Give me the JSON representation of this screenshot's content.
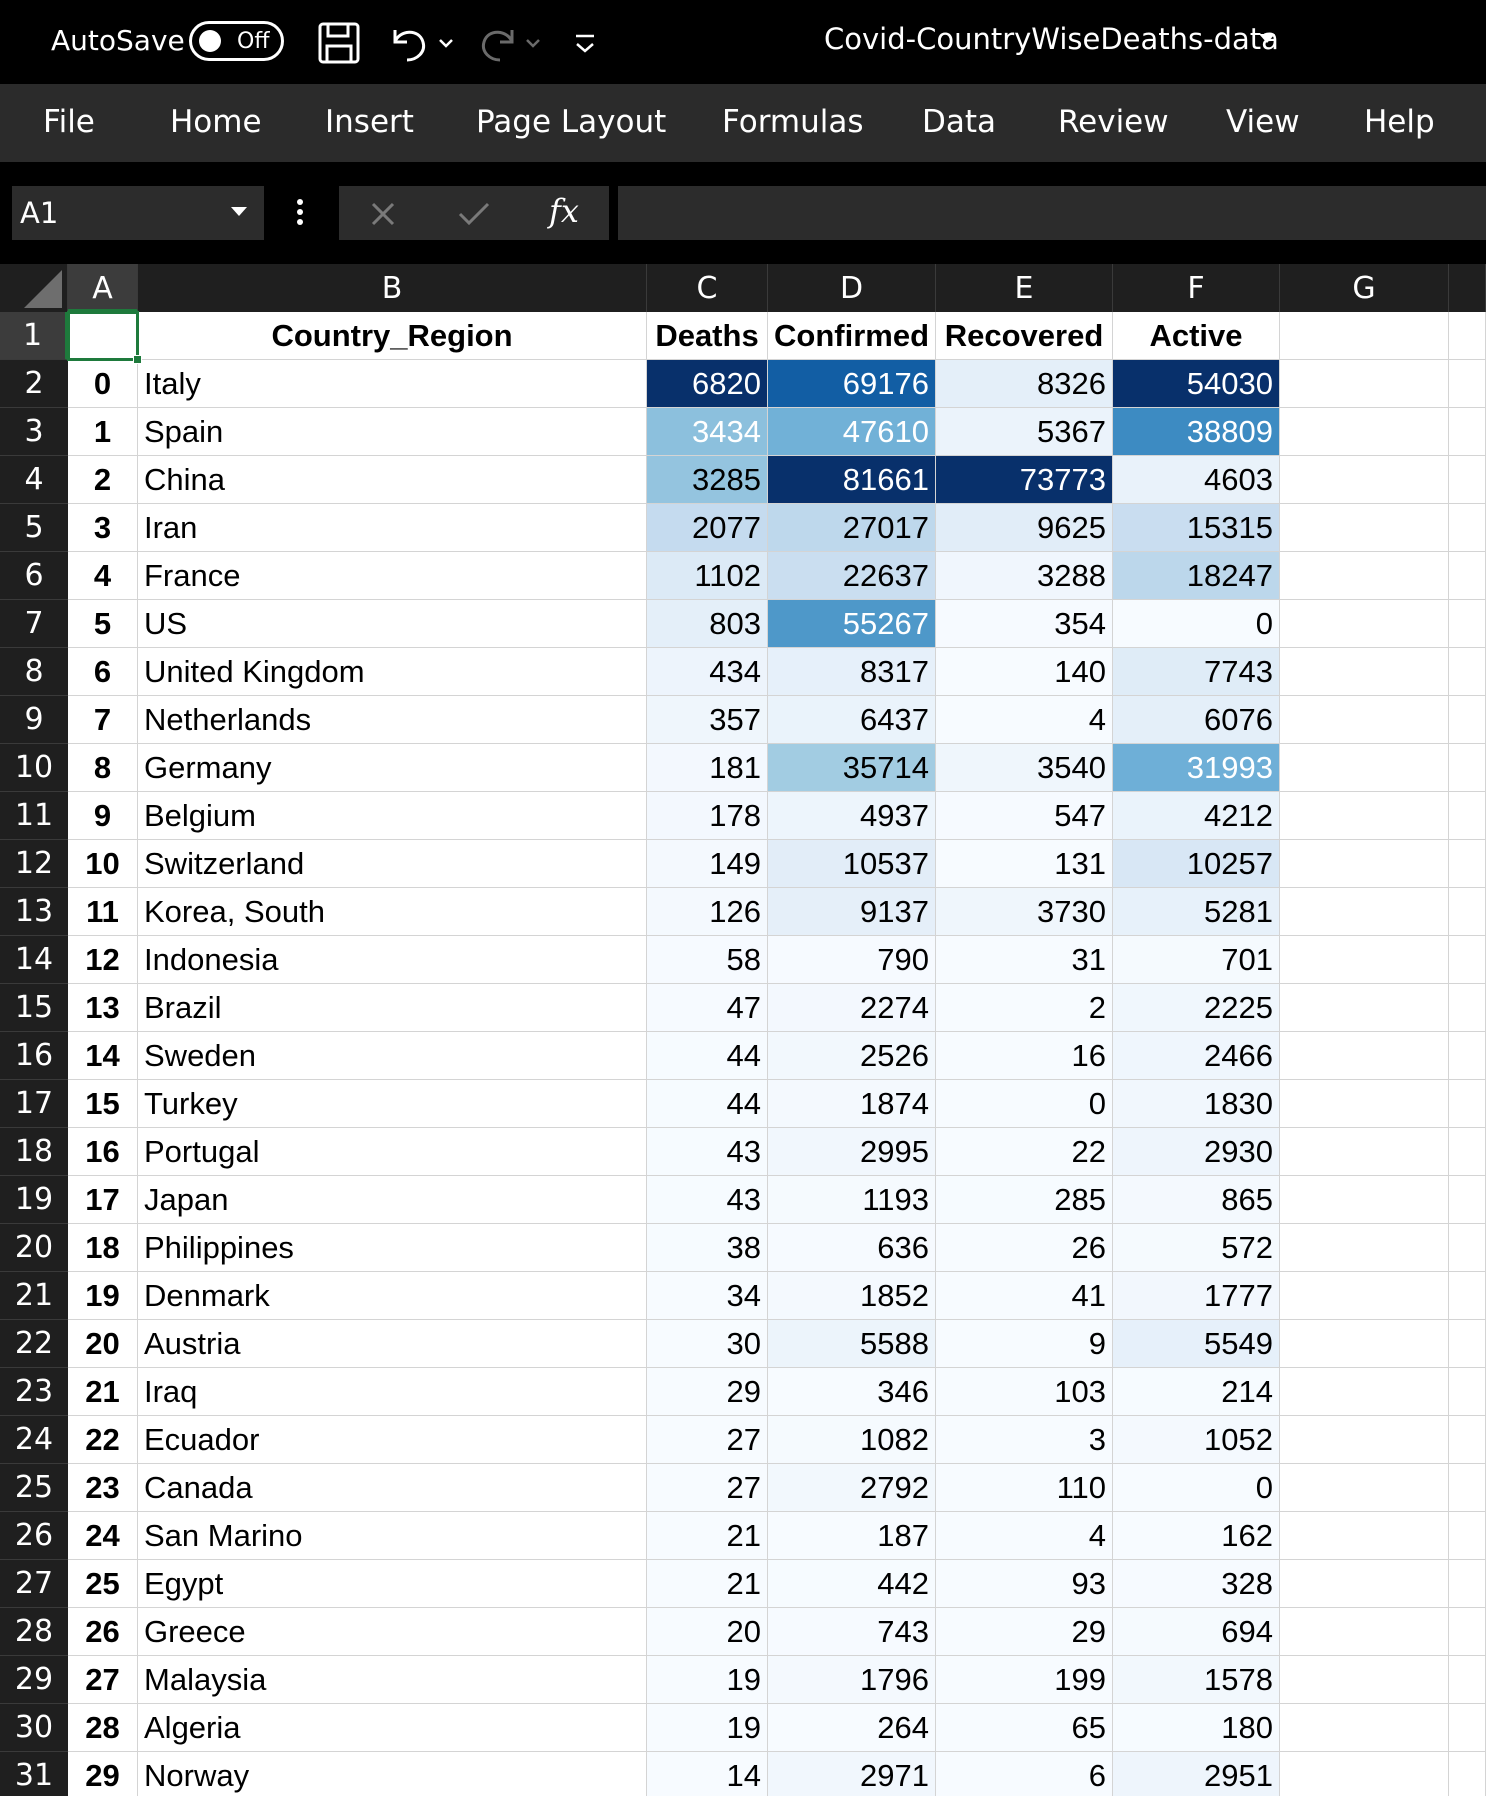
{
  "titlebar": {
    "autosave_label": "AutoSave",
    "autosave_state": "Off",
    "document_title": "Covid-CountryWiseDeaths-data",
    "icons": [
      "save-icon",
      "undo-icon",
      "redo-icon",
      "customize-quick-access-icon"
    ]
  },
  "menu": {
    "items": [
      "File",
      "Home",
      "Insert",
      "Page Layout",
      "Formulas",
      "Data",
      "Review",
      "View",
      "Help"
    ]
  },
  "formula_bar": {
    "name_box": "A1",
    "formula": "",
    "fx_label": "fx"
  },
  "grid": {
    "column_letters": [
      "A",
      "B",
      "C",
      "D",
      "E",
      "F",
      "G"
    ],
    "selected_column": "A",
    "selected_row": 1,
    "header_row": [
      "",
      "Country_Region",
      "Deaths",
      "Confirmed",
      "Recovered",
      "Active"
    ],
    "rows": [
      {
        "row": 2,
        "idx": "0",
        "country": "Italy",
        "deaths": 6820,
        "confirmed": 69176,
        "recovered": 8326,
        "active": 54030
      },
      {
        "row": 3,
        "idx": "1",
        "country": "Spain",
        "deaths": 3434,
        "confirmed": 47610,
        "recovered": 5367,
        "active": 38809
      },
      {
        "row": 4,
        "idx": "2",
        "country": "China",
        "deaths": 3285,
        "confirmed": 81661,
        "recovered": 73773,
        "active": 4603
      },
      {
        "row": 5,
        "idx": "3",
        "country": "Iran",
        "deaths": 2077,
        "confirmed": 27017,
        "recovered": 9625,
        "active": 15315
      },
      {
        "row": 6,
        "idx": "4",
        "country": "France",
        "deaths": 1102,
        "confirmed": 22637,
        "recovered": 3288,
        "active": 18247
      },
      {
        "row": 7,
        "idx": "5",
        "country": "US",
        "deaths": 803,
        "confirmed": 55267,
        "recovered": 354,
        "active": 0
      },
      {
        "row": 8,
        "idx": "6",
        "country": "United Kingdom",
        "deaths": 434,
        "confirmed": 8317,
        "recovered": 140,
        "active": 7743
      },
      {
        "row": 9,
        "idx": "7",
        "country": "Netherlands",
        "deaths": 357,
        "confirmed": 6437,
        "recovered": 4,
        "active": 6076
      },
      {
        "row": 10,
        "idx": "8",
        "country": "Germany",
        "deaths": 181,
        "confirmed": 35714,
        "recovered": 3540,
        "active": 31993
      },
      {
        "row": 11,
        "idx": "9",
        "country": "Belgium",
        "deaths": 178,
        "confirmed": 4937,
        "recovered": 547,
        "active": 4212
      },
      {
        "row": 12,
        "idx": "10",
        "country": "Switzerland",
        "deaths": 149,
        "confirmed": 10537,
        "recovered": 131,
        "active": 10257
      },
      {
        "row": 13,
        "idx": "11",
        "country": "Korea, South",
        "deaths": 126,
        "confirmed": 9137,
        "recovered": 3730,
        "active": 5281
      },
      {
        "row": 14,
        "idx": "12",
        "country": "Indonesia",
        "deaths": 58,
        "confirmed": 790,
        "recovered": 31,
        "active": 701
      },
      {
        "row": 15,
        "idx": "13",
        "country": "Brazil",
        "deaths": 47,
        "confirmed": 2274,
        "recovered": 2,
        "active": 2225
      },
      {
        "row": 16,
        "idx": "14",
        "country": "Sweden",
        "deaths": 44,
        "confirmed": 2526,
        "recovered": 16,
        "active": 2466
      },
      {
        "row": 17,
        "idx": "15",
        "country": "Turkey",
        "deaths": 44,
        "confirmed": 1874,
        "recovered": 0,
        "active": 1830
      },
      {
        "row": 18,
        "idx": "16",
        "country": "Portugal",
        "deaths": 43,
        "confirmed": 2995,
        "recovered": 22,
        "active": 2930
      },
      {
        "row": 19,
        "idx": "17",
        "country": "Japan",
        "deaths": 43,
        "confirmed": 1193,
        "recovered": 285,
        "active": 865
      },
      {
        "row": 20,
        "idx": "18",
        "country": "Philippines",
        "deaths": 38,
        "confirmed": 636,
        "recovered": 26,
        "active": 572
      },
      {
        "row": 21,
        "idx": "19",
        "country": "Denmark",
        "deaths": 34,
        "confirmed": 1852,
        "recovered": 41,
        "active": 1777
      },
      {
        "row": 22,
        "idx": "20",
        "country": "Austria",
        "deaths": 30,
        "confirmed": 5588,
        "recovered": 9,
        "active": 5549
      },
      {
        "row": 23,
        "idx": "21",
        "country": "Iraq",
        "deaths": 29,
        "confirmed": 346,
        "recovered": 103,
        "active": 214
      },
      {
        "row": 24,
        "idx": "22",
        "country": "Ecuador",
        "deaths": 27,
        "confirmed": 1082,
        "recovered": 3,
        "active": 1052
      },
      {
        "row": 25,
        "idx": "23",
        "country": "Canada",
        "deaths": 27,
        "confirmed": 2792,
        "recovered": 110,
        "active": 0
      },
      {
        "row": 26,
        "idx": "24",
        "country": "San Marino",
        "deaths": 21,
        "confirmed": 187,
        "recovered": 4,
        "active": 162
      },
      {
        "row": 27,
        "idx": "25",
        "country": "Egypt",
        "deaths": 21,
        "confirmed": 442,
        "recovered": 93,
        "active": 328
      },
      {
        "row": 28,
        "idx": "26",
        "country": "Greece",
        "deaths": 20,
        "confirmed": 743,
        "recovered": 29,
        "active": 694
      },
      {
        "row": 29,
        "idx": "27",
        "country": "Malaysia",
        "deaths": 19,
        "confirmed": 1796,
        "recovered": 199,
        "active": 1578
      },
      {
        "row": 30,
        "idx": "28",
        "country": "Algeria",
        "deaths": 19,
        "confirmed": 264,
        "recovered": 65,
        "active": 180
      },
      {
        "row": 31,
        "idx": "29",
        "country": "Norway",
        "deaths": 14,
        "confirmed": 2971,
        "recovered": 6,
        "active": 2951
      }
    ],
    "heatmap_colors": {
      "low": "#f7fbff",
      "high": "#08306b",
      "light_text_threshold": 0.5
    }
  }
}
